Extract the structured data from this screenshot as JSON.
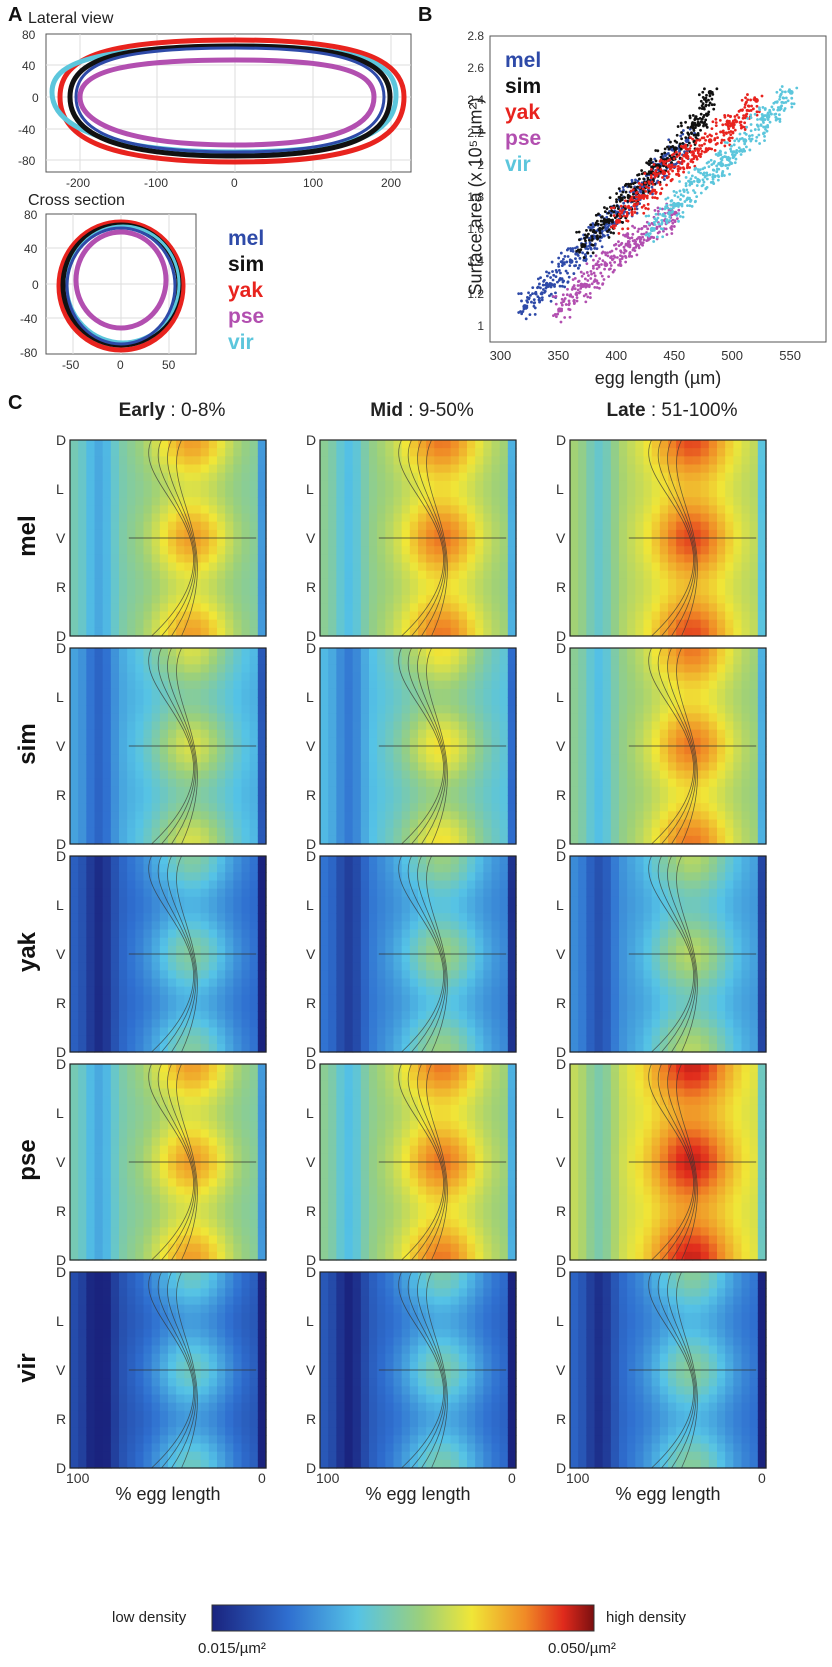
{
  "panels": {
    "a": "A",
    "b": "B",
    "c": "C"
  },
  "panel_a": {
    "lateral_title": "Lateral view",
    "cross_title": "Cross section",
    "lateral_yticks": [
      "80",
      "40",
      "0",
      "-40",
      "-80"
    ],
    "lateral_xticks": [
      "-200",
      "-100",
      "0",
      "100",
      "200"
    ],
    "cross_yticks": [
      "80",
      "40",
      "0",
      "-40",
      "-80"
    ],
    "cross_xticks": [
      "-50",
      "0",
      "50"
    ]
  },
  "species": [
    {
      "name": "mel",
      "color": "#2e4aa8"
    },
    {
      "name": "sim",
      "color": "#111111"
    },
    {
      "name": "yak",
      "color": "#e8231e"
    },
    {
      "name": "pse",
      "color": "#b24fb0"
    },
    {
      "name": "vir",
      "color": "#5cc6dc"
    }
  ],
  "chart_data": {
    "type": "scatter",
    "xlabel": "egg length (µm)",
    "ylabel": "Surface area (x 10⁵ µm²)",
    "xlim": [
      290,
      580
    ],
    "ylim": [
      0.9,
      2.8
    ],
    "xticks": [
      "300",
      "350",
      "400",
      "450",
      "500",
      "550"
    ],
    "yticks": [
      "1",
      "1.2",
      "1.4",
      "1.6",
      "1.8",
      "2",
      "2.2",
      "2.4",
      "2.6",
      "2.8"
    ],
    "series": [
      {
        "name": "mel",
        "x": [
          320,
          340,
          360,
          380,
          400,
          420,
          440,
          460
        ],
        "y": [
          1.12,
          1.25,
          1.4,
          1.55,
          1.7,
          1.85,
          2.0,
          2.15
        ]
      },
      {
        "name": "sim",
        "x": [
          370,
          390,
          410,
          430,
          450,
          470,
          480
        ],
        "y": [
          1.5,
          1.65,
          1.8,
          1.95,
          2.1,
          2.25,
          2.45
        ]
      },
      {
        "name": "yak",
        "x": [
          400,
          420,
          440,
          460,
          480,
          500,
          520
        ],
        "y": [
          1.65,
          1.8,
          1.95,
          2.05,
          2.15,
          2.25,
          2.4
        ]
      },
      {
        "name": "pse",
        "x": [
          350,
          370,
          390,
          410,
          430,
          450
        ],
        "y": [
          1.1,
          1.25,
          1.38,
          1.5,
          1.6,
          1.7
        ]
      },
      {
        "name": "vir",
        "x": [
          430,
          450,
          470,
          490,
          510,
          530,
          550
        ],
        "y": [
          1.6,
          1.75,
          1.9,
          2.0,
          2.15,
          2.3,
          2.45
        ]
      }
    ]
  },
  "panel_c": {
    "columns": [
      {
        "bold": "Early",
        "rest": " : 0-8%"
      },
      {
        "bold": "Mid",
        "rest": " : 9-50%"
      },
      {
        "bold": "Late",
        "rest": " : 51-100%"
      }
    ],
    "rows": [
      "mel",
      "sim",
      "yak",
      "pse",
      "vir"
    ],
    "dv_ticks": [
      "D",
      "L",
      "V",
      "R",
      "D"
    ],
    "x_tick_left": "100",
    "x_tick_right": "0",
    "xlabel": "% egg length",
    "colorbar_low": "low density",
    "colorbar_high": "high density",
    "colorbar_min": "0.015/µm²",
    "colorbar_max": "0.050/µm²",
    "intensity": [
      [
        0.65,
        0.7,
        0.75
      ],
      [
        0.5,
        0.55,
        0.7
      ],
      [
        0.35,
        0.4,
        0.45
      ],
      [
        0.65,
        0.7,
        0.8
      ],
      [
        0.3,
        0.33,
        0.36
      ]
    ]
  }
}
